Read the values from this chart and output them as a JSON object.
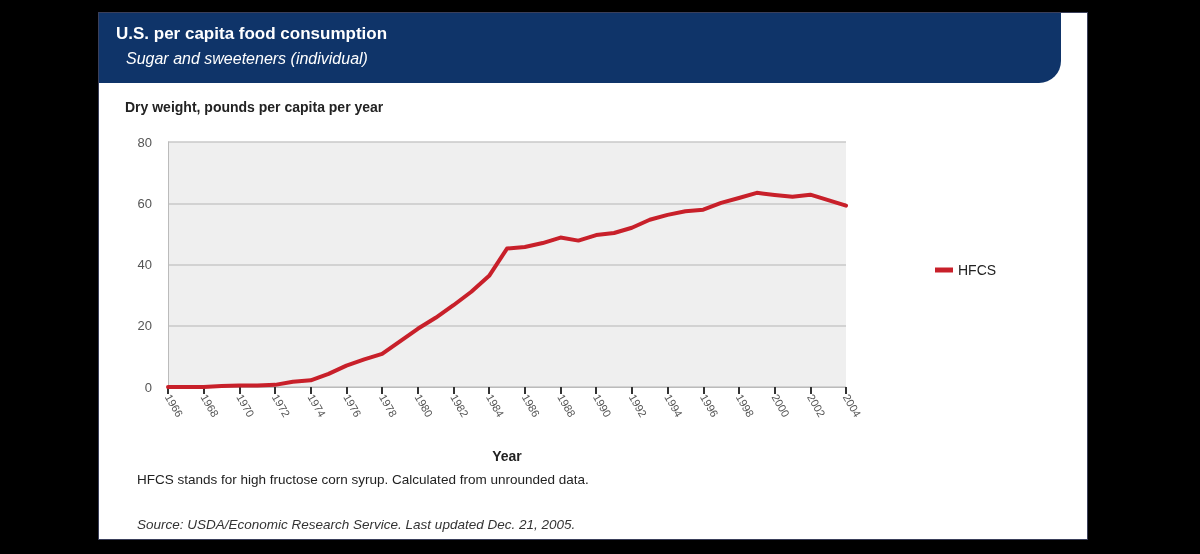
{
  "chart_data": {
    "type": "line",
    "title": "U.S. per capita food consumption",
    "subtitle": "Sugar and sweeteners (individual)",
    "ylabel": "Dry weight, pounds per capita per year",
    "xlabel": "Year",
    "x": [
      1966,
      1967,
      1968,
      1969,
      1970,
      1971,
      1972,
      1973,
      1974,
      1975,
      1976,
      1977,
      1978,
      1979,
      1980,
      1981,
      1982,
      1983,
      1984,
      1985,
      1986,
      1987,
      1988,
      1989,
      1990,
      1991,
      1992,
      1993,
      1994,
      1995,
      1996,
      1997,
      1998,
      1999,
      2000,
      2001,
      2002,
      2003,
      2004
    ],
    "series": [
      {
        "name": "HFCS",
        "color": "#c8202a",
        "values": [
          0.0,
          0.0,
          0.0,
          0.3,
          0.5,
          0.5,
          0.7,
          1.7,
          2.2,
          4.3,
          7.0,
          9.0,
          10.8,
          14.9,
          19.0,
          22.6,
          26.7,
          31.1,
          36.3,
          45.2,
          45.7,
          47.0,
          48.8,
          47.8,
          49.6,
          50.3,
          52.0,
          54.6,
          56.2,
          57.4,
          57.9,
          60.1,
          61.7,
          63.4,
          62.7,
          62.1,
          62.8,
          61.0,
          59.2
        ]
      }
    ],
    "xlim": [
      1966,
      2004
    ],
    "xticks": [
      1966,
      1968,
      1970,
      1972,
      1974,
      1976,
      1978,
      1980,
      1982,
      1984,
      1986,
      1988,
      1990,
      1992,
      1994,
      1996,
      1998,
      2000,
      2002,
      2004
    ],
    "ylim": [
      0,
      80
    ],
    "yticks": [
      0,
      20,
      40,
      60,
      80
    ],
    "grid": "y",
    "legend": "right",
    "marker": "none",
    "line_style": "solid",
    "annotations": [
      "HFCS stands for high fructose corn syrup. Calculated from unrounded data.",
      "Source: USDA/Economic Research Service. Last updated Dec. 21, 2005."
    ]
  }
}
